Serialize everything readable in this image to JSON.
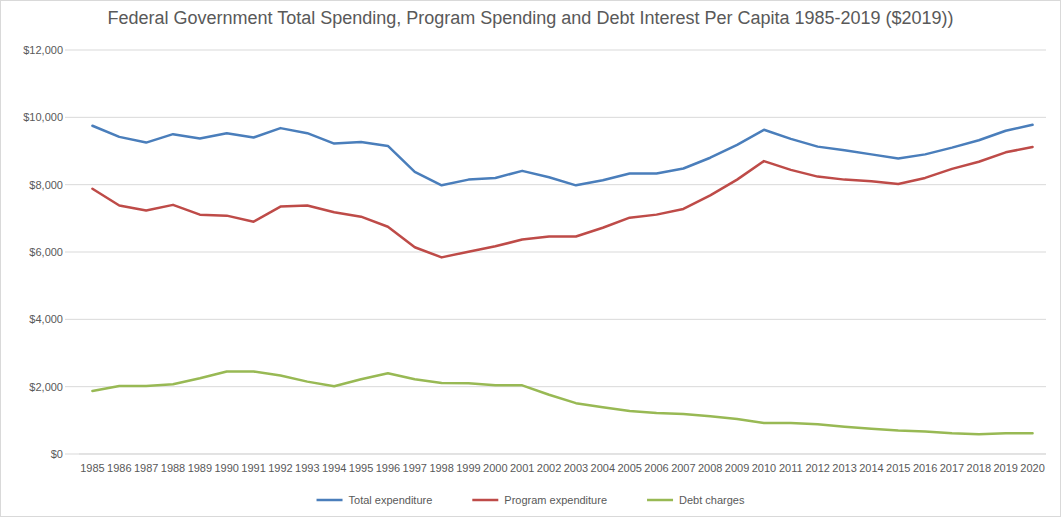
{
  "chart_data": {
    "type": "line",
    "title": "Federal Government Total Spending, Program Spending and Debt Interest Per Capita 1985-2019 ($2019))",
    "categories": [
      "1985",
      "1986",
      "1987",
      "1988",
      "1989",
      "1990",
      "1991",
      "1992",
      "1993",
      "1994",
      "1995",
      "1996",
      "1997",
      "1998",
      "1999",
      "2000",
      "2001",
      "2002",
      "2003",
      "2004",
      "2005",
      "2006",
      "2007",
      "2008",
      "2009",
      "2010",
      "2011",
      "2012",
      "2013",
      "2014",
      "2015",
      "2016",
      "2017",
      "2018",
      "2019",
      "2020"
    ],
    "series": [
      {
        "name": "Total expenditure",
        "color": "#4a7ebb",
        "values": [
          9750,
          9420,
          9250,
          9500,
          9370,
          9530,
          9400,
          9680,
          9530,
          9220,
          9270,
          9150,
          8380,
          7980,
          8150,
          8200,
          8410,
          8220,
          7980,
          8130,
          8330,
          8330,
          8480,
          8800,
          9180,
          9630,
          9360,
          9130,
          9020,
          8900,
          8780,
          8900,
          9100,
          9320,
          9600,
          9780
        ]
      },
      {
        "name": "Program expenditure",
        "color": "#be4b48",
        "values": [
          7880,
          7380,
          7230,
          7400,
          7110,
          7080,
          6900,
          7350,
          7380,
          7180,
          7050,
          6750,
          6140,
          5840,
          6010,
          6170,
          6370,
          6460,
          6460,
          6720,
          7020,
          7110,
          7280,
          7680,
          8150,
          8700,
          8440,
          8240,
          8150,
          8100,
          8020,
          8200,
          8470,
          8680,
          8960,
          9120
        ]
      },
      {
        "name": "Debt charges",
        "color": "#98b954",
        "values": [
          1870,
          2020,
          2020,
          2070,
          2250,
          2450,
          2450,
          2330,
          2150,
          2010,
          2220,
          2400,
          2220,
          2110,
          2100,
          2040,
          2040,
          1760,
          1510,
          1390,
          1280,
          1220,
          1190,
          1120,
          1040,
          920,
          920,
          880,
          810,
          750,
          700,
          670,
          620,
          590,
          620,
          620
        ]
      }
    ],
    "ylim": [
      0,
      12000
    ],
    "yticks": [
      {
        "value": 0,
        "label": "$0"
      },
      {
        "value": 2000,
        "label": "$2,000"
      },
      {
        "value": 4000,
        "label": "$4,000"
      },
      {
        "value": 6000,
        "label": "$6,000"
      },
      {
        "value": 8000,
        "label": "$8,000"
      },
      {
        "value": 10000,
        "label": "$10,000"
      },
      {
        "value": 12000,
        "label": "$12,000"
      }
    ],
    "grid": true,
    "legend": "bottom"
  }
}
